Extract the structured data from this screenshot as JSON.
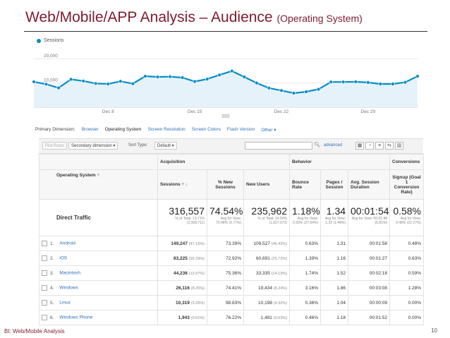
{
  "slide": {
    "title": "Web/Mobile/APP Analysis – Audience",
    "subtitle": "(Operating System)",
    "footer_left": "BI: Web/Mobile Analysis",
    "page_number": "10"
  },
  "chart_data": {
    "type": "line",
    "legend": "Sessions",
    "y_ticks": [
      "20,000",
      "10,000"
    ],
    "ylim": [
      0,
      25000
    ],
    "x_labels": [
      "Dec 8",
      "Dec 15",
      "Dec 22",
      "Dec 29"
    ],
    "series": [
      {
        "name": "Sessions",
        "values": [
          10500,
          9500,
          8000,
          11500,
          10800,
          9800,
          9600,
          10700,
          9700,
          12800,
          12500,
          12600,
          12200,
          10600,
          11600,
          13300,
          14900,
          12500,
          10000,
          7900,
          6900,
          5800,
          6400,
          7400,
          10400,
          10400,
          10500,
          10200,
          9600,
          9600,
          10300,
          12800
        ]
      }
    ],
    "color": "#058dc7"
  },
  "dimensions": {
    "label": "Primary Dimension:",
    "items": [
      "Browser",
      "Operating System",
      "Screen Resolution",
      "Screen Colors",
      "Flash Version",
      "Other"
    ],
    "active": "Operating System"
  },
  "toolbar": {
    "plot_rows": "Plot Rows",
    "secondary_dimension": "Secondary dimension",
    "sort_type_label": "Sort Type:",
    "sort_type_value": "Default",
    "advanced": "advanced"
  },
  "table": {
    "group_acquisition": "Acquisition",
    "group_behavior": "Behavior",
    "group_conversions": "Conversions",
    "col_os": "Operating System",
    "col_sessions": "Sessions",
    "col_new_sessions": "% New Sessions",
    "col_new_users": "New Users",
    "col_bounce": "Bounce Rate",
    "col_pages": "Pages / Session",
    "col_duration": "Avg. Session Duration",
    "col_conv": "Signup (Goal 1 Conversion Rate)",
    "totals": {
      "label": "Direct Traffic",
      "sessions": "316,557",
      "sessions_sub": "% of Total: 13.71% (2,308,711)",
      "new_sessions": "74.54%",
      "new_sessions_sub": "Avg for View: 70.48% (5.77%)",
      "new_users": "235,962",
      "new_users_sub": "% of Total: 14.50% (1,627,073)",
      "bounce": "1.18%",
      "bounce_sub": "Avg for View: 0.93% (27.64%)",
      "pages": "1.34",
      "pages_sub": "Avg for View: 1.32 (1.48%)",
      "duration": "00:01:54",
      "duration_sub": "Avg for View: 00:01:48 (5.81%)",
      "conv": "0.58%",
      "conv_sub": "Avg for View: 0.48% (22.27%)"
    },
    "rows": [
      {
        "n": "1.",
        "os": "Android",
        "sessions": "149,247",
        "sessions_pct": "(47.15%)",
        "new_sessions": "73.39%",
        "new_users": "109,527",
        "new_users_pct": "(46.42%)",
        "bounce": "0.63%",
        "pages": "1.31",
        "duration": "00:01:58",
        "conv": "0.48%"
      },
      {
        "n": "2.",
        "os": "iOS",
        "sessions": "83,225",
        "sessions_pct": "(26.29%)",
        "new_sessions": "72.92%",
        "new_users": "60,691",
        "new_users_pct": "(25.72%)",
        "bounce": "1.39%",
        "pages": "1.16",
        "duration": "00:01:27",
        "conv": "0.63%"
      },
      {
        "n": "3.",
        "os": "Macintosh",
        "sessions": "44,236",
        "sessions_pct": "(13.97%)",
        "new_sessions": "75.36%",
        "new_users": "33,335",
        "new_users_pct": "(14.13%)",
        "bounce": "1.74%",
        "pages": "1.52",
        "duration": "00:02:18",
        "conv": "0.59%"
      },
      {
        "n": "4.",
        "os": "Windows",
        "sessions": "26,116",
        "sessions_pct": "(8.25%)",
        "new_sessions": "74.41%",
        "new_users": "19,434",
        "new_users_pct": "(8.24%)",
        "bounce": "3.16%",
        "pages": "1.86",
        "duration": "00:03:08",
        "conv": "1.28%"
      },
      {
        "n": "5.",
        "os": "Linux",
        "sessions": "10,319",
        "sessions_pct": "(3.26%)",
        "new_sessions": "98.83%",
        "new_users": "10,198",
        "new_users_pct": "(4.32%)",
        "bounce": "0.36%",
        "pages": "1.04",
        "duration": "00:00:09",
        "conv": "0.00%"
      },
      {
        "n": "6.",
        "os": "Windows Phone",
        "sessions": "1,943",
        "sessions_pct": "(0.61%)",
        "new_sessions": "76.22%",
        "new_users": "1,481",
        "new_users_pct": "(0.63%)",
        "bounce": "0.46%",
        "pages": "1.18",
        "duration": "00:01:52",
        "conv": "0.00%"
      }
    ]
  }
}
